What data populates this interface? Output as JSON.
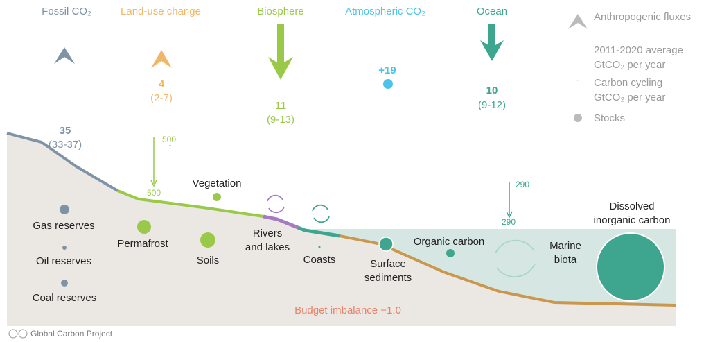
{
  "header": {
    "fossil": "Fossil CO₂",
    "land_use": "Land-use change",
    "biosphere": "Biosphere",
    "atmosphere": "Atmospheric CO₂",
    "ocean": "Ocean"
  },
  "fluxes": {
    "fossil": {
      "value": "35",
      "range": "(33-37)"
    },
    "land_use": {
      "value": "4",
      "range": "(2-7)"
    },
    "biosphere": {
      "value": "11",
      "range": "(9-13)"
    },
    "atmosphere": {
      "value": "+19"
    },
    "ocean": {
      "value": "10",
      "range": "(9-12)"
    }
  },
  "legend": {
    "anthropogenic": "Anthropogenic fluxes",
    "average": [
      "2011-2020 average",
      "GtCO₂ per year"
    ],
    "cycling": [
      "Carbon cycling",
      "GtCO₂ per year"
    ],
    "stocks": "Stocks"
  },
  "cycling": {
    "land_up": "500",
    "land_down": "500",
    "ocean_up": "290",
    "ocean_down": "290"
  },
  "stocks": {
    "gas": "Gas reserves",
    "oil": "Oil reserves",
    "coal": "Coal reserves",
    "permafrost": "Permafrost",
    "vegetation": "Vegetation",
    "soils": "Soils",
    "rivers": [
      "Rivers",
      "and lakes"
    ],
    "coasts": "Coasts",
    "sediments": [
      "Surface",
      "sediments"
    ],
    "organic": "Organic carbon",
    "biota": [
      "Marine",
      "biota"
    ],
    "dissolved": [
      "Dissolved",
      "inorganic carbon"
    ]
  },
  "imbalance": "Budget imbalance −1.0",
  "footer": "Global Carbon Project"
}
